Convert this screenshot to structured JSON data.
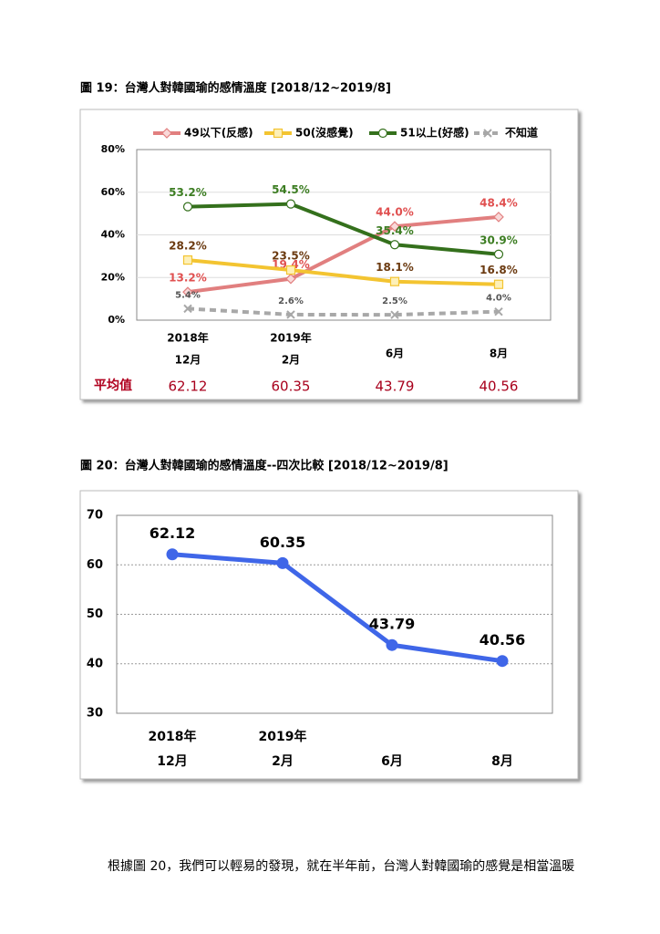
{
  "captions": [
    "圖 19：台灣人對韓國瑜的感情溫度  [2018/12~2019/8]",
    "圖 20：台灣人對韓國瑜的感情溫度--四次比較  [2018/12~2019/8]"
  ],
  "body": "根據圖 20，我們可以輕易的發現，就在半年前，台灣人對韓國瑜的感覺是相當溫暖",
  "chart_data": [
    {
      "type": "line",
      "legend": "top",
      "grid": true,
      "categories": [
        [
          "2018年",
          "12月"
        ],
        [
          "2019年",
          "2月"
        ],
        [
          "6月"
        ],
        [
          "8月"
        ]
      ],
      "ylim": [
        0,
        80
      ],
      "yticks": [
        {
          "value": 0,
          "label": "0%"
        },
        {
          "value": 20,
          "label": "20%"
        },
        {
          "value": 40,
          "label": "40%"
        },
        {
          "value": 60,
          "label": "60%"
        },
        {
          "value": 80,
          "label": "80%"
        }
      ],
      "series": [
        {
          "name": "49以下(反感)",
          "color": "#e17f7f",
          "label_color": "#e05050",
          "marker": "diamond",
          "values": [
            13.2,
            19.4,
            44.0,
            48.4
          ],
          "value_labels": [
            "13.2%",
            "19.4%",
            "44.0%",
            "48.4%"
          ]
        },
        {
          "name": "50(沒感覺)",
          "color": "#f3c431",
          "label_color": "#6b3a10",
          "marker": "square",
          "values": [
            28.2,
            23.5,
            18.1,
            16.8
          ],
          "value_labels": [
            "28.2%",
            "23.5%",
            "18.1%",
            "16.8%"
          ]
        },
        {
          "name": "51以上(好感)",
          "color": "#34701c",
          "label_color": "#3c7d22",
          "marker": "circle",
          "values": [
            53.2,
            54.5,
            35.4,
            30.9
          ],
          "value_labels": [
            "53.2%",
            "54.5%",
            "35.4%",
            "30.9%"
          ]
        },
        {
          "name": "不知道",
          "color": "#a8a8a8",
          "label_color": "#555555",
          "marker": "x",
          "dashed": true,
          "values": [
            5.4,
            2.6,
            2.5,
            4.0
          ],
          "value_labels": [
            "5.4%",
            "2.6%",
            "2.5%",
            "4.0%"
          ]
        }
      ],
      "average": {
        "label": "平均值",
        "values": [
          62.12,
          60.35,
          43.79,
          40.56
        ]
      }
    },
    {
      "type": "line",
      "grid": true,
      "color": "#3f66e8",
      "categories": [
        [
          "2018年",
          "12月"
        ],
        [
          "2019年",
          "2月"
        ],
        [
          "6月"
        ],
        [
          "8月"
        ]
      ],
      "ylim": [
        30,
        70
      ],
      "yticks": [
        30,
        40,
        50,
        60,
        70
      ],
      "values": [
        62.12,
        60.35,
        43.79,
        40.56
      ]
    }
  ]
}
